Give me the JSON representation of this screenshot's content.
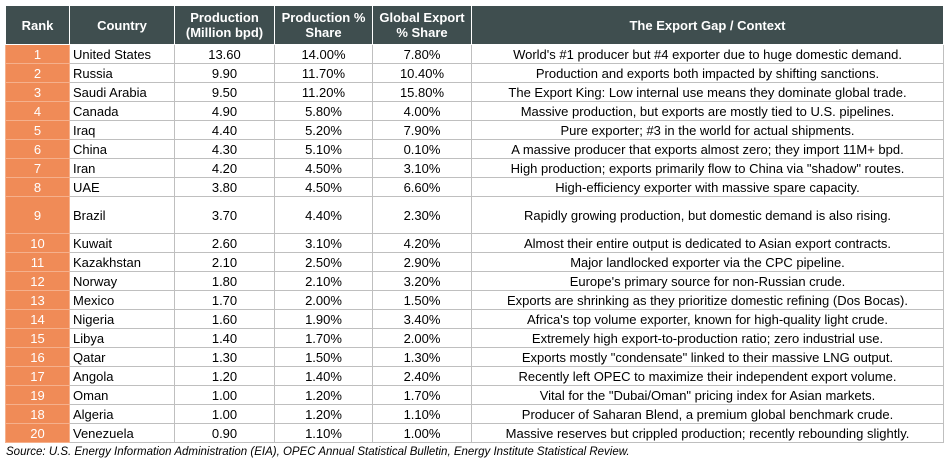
{
  "headers": {
    "rank": "Rank",
    "country": "Country",
    "production_l1": "Production",
    "production_l2": "(Million bpd)",
    "share_l1": "Production %",
    "share_l2": "Share",
    "export_l1": "Global Export",
    "export_l2": "% Share",
    "context": "The Export Gap / Context"
  },
  "rows": [
    {
      "rank": "1",
      "country": "United States",
      "production": "13.60",
      "share": "14.00%",
      "export": "7.80%",
      "context": "World's #1 producer but #4 exporter due to huge domestic demand."
    },
    {
      "rank": "2",
      "country": "Russia",
      "production": "9.90",
      "share": "11.70%",
      "export": "10.40%",
      "context": "Production and exports both impacted by shifting sanctions."
    },
    {
      "rank": "3",
      "country": "Saudi Arabia",
      "production": "9.50",
      "share": "11.20%",
      "export": "15.80%",
      "context": "The Export King: Low internal use means they dominate global trade."
    },
    {
      "rank": "4",
      "country": "Canada",
      "production": "4.90",
      "share": "5.80%",
      "export": "4.00%",
      "context": "Massive production, but exports are mostly tied to U.S. pipelines."
    },
    {
      "rank": "5",
      "country": "Iraq",
      "production": "4.40",
      "share": "5.20%",
      "export": "7.90%",
      "context": "Pure exporter; #3 in the world for actual shipments."
    },
    {
      "rank": "6",
      "country": "China",
      "production": "4.30",
      "share": "5.10%",
      "export": "0.10%",
      "context": "A massive producer that exports almost zero; they import 11M+ bpd."
    },
    {
      "rank": "7",
      "country": "Iran",
      "production": "4.20",
      "share": "4.50%",
      "export": "3.10%",
      "context": "High production; exports primarily flow to China via \"shadow\" routes."
    },
    {
      "rank": "8",
      "country": "UAE",
      "production": "3.80",
      "share": "4.50%",
      "export": "6.60%",
      "context": "High-efficiency exporter with massive spare capacity."
    },
    {
      "rank": "9",
      "country": "Brazil",
      "production": "3.70",
      "share": "4.40%",
      "export": "2.30%",
      "context": "Rapidly growing production, but domestic demand is also rising."
    },
    {
      "rank": "10",
      "country": "Kuwait",
      "production": "2.60",
      "share": "3.10%",
      "export": "4.20%",
      "context": "Almost their entire output is dedicated to Asian export contracts."
    },
    {
      "rank": "11",
      "country": "Kazakhstan",
      "production": "2.10",
      "share": "2.50%",
      "export": "2.90%",
      "context": "Major landlocked exporter via the CPC pipeline."
    },
    {
      "rank": "12",
      "country": "Norway",
      "production": "1.80",
      "share": "2.10%",
      "export": "3.20%",
      "context": "Europe's primary source for non-Russian crude."
    },
    {
      "rank": "13",
      "country": "Mexico",
      "production": "1.70",
      "share": "2.00%",
      "export": "1.50%",
      "context": "Exports are shrinking as they prioritize domestic refining (Dos Bocas)."
    },
    {
      "rank": "14",
      "country": "Nigeria",
      "production": "1.60",
      "share": "1.90%",
      "export": "3.40%",
      "context": "Africa's top volume exporter, known for high-quality light crude."
    },
    {
      "rank": "15",
      "country": "Libya",
      "production": "1.40",
      "share": "1.70%",
      "export": "2.00%",
      "context": "Extremely high export-to-production ratio; zero industrial use."
    },
    {
      "rank": "16",
      "country": "Qatar",
      "production": "1.30",
      "share": "1.50%",
      "export": "1.30%",
      "context": "Exports mostly \"condensate\" linked to their massive LNG output."
    },
    {
      "rank": "17",
      "country": "Angola",
      "production": "1.20",
      "share": "1.40%",
      "export": "2.40%",
      "context": "Recently left OPEC to maximize their independent export volume."
    },
    {
      "rank": "19",
      "country": "Oman",
      "production": "1.00",
      "share": "1.20%",
      "export": "1.70%",
      "context": "Vital for the \"Dubai/Oman\" pricing index for Asian markets."
    },
    {
      "rank": "18",
      "country": "Algeria",
      "production": "1.00",
      "share": "1.20%",
      "export": "1.10%",
      "context": "Producer of Saharan Blend, a premium global benchmark crude."
    },
    {
      "rank": "20",
      "country": "Venezuela",
      "production": "0.90",
      "share": "1.10%",
      "export": "1.00%",
      "context": "Massive reserves but crippled production; recently rebounding slightly."
    }
  ],
  "source": "Source: U.S. Energy Information Administration (EIA), OPEC Annual Statistical Bulletin, Energy Institute Statistical Review.",
  "colors": {
    "header_bg": "#3f4e4f",
    "rank_bg": "#f08b57"
  }
}
